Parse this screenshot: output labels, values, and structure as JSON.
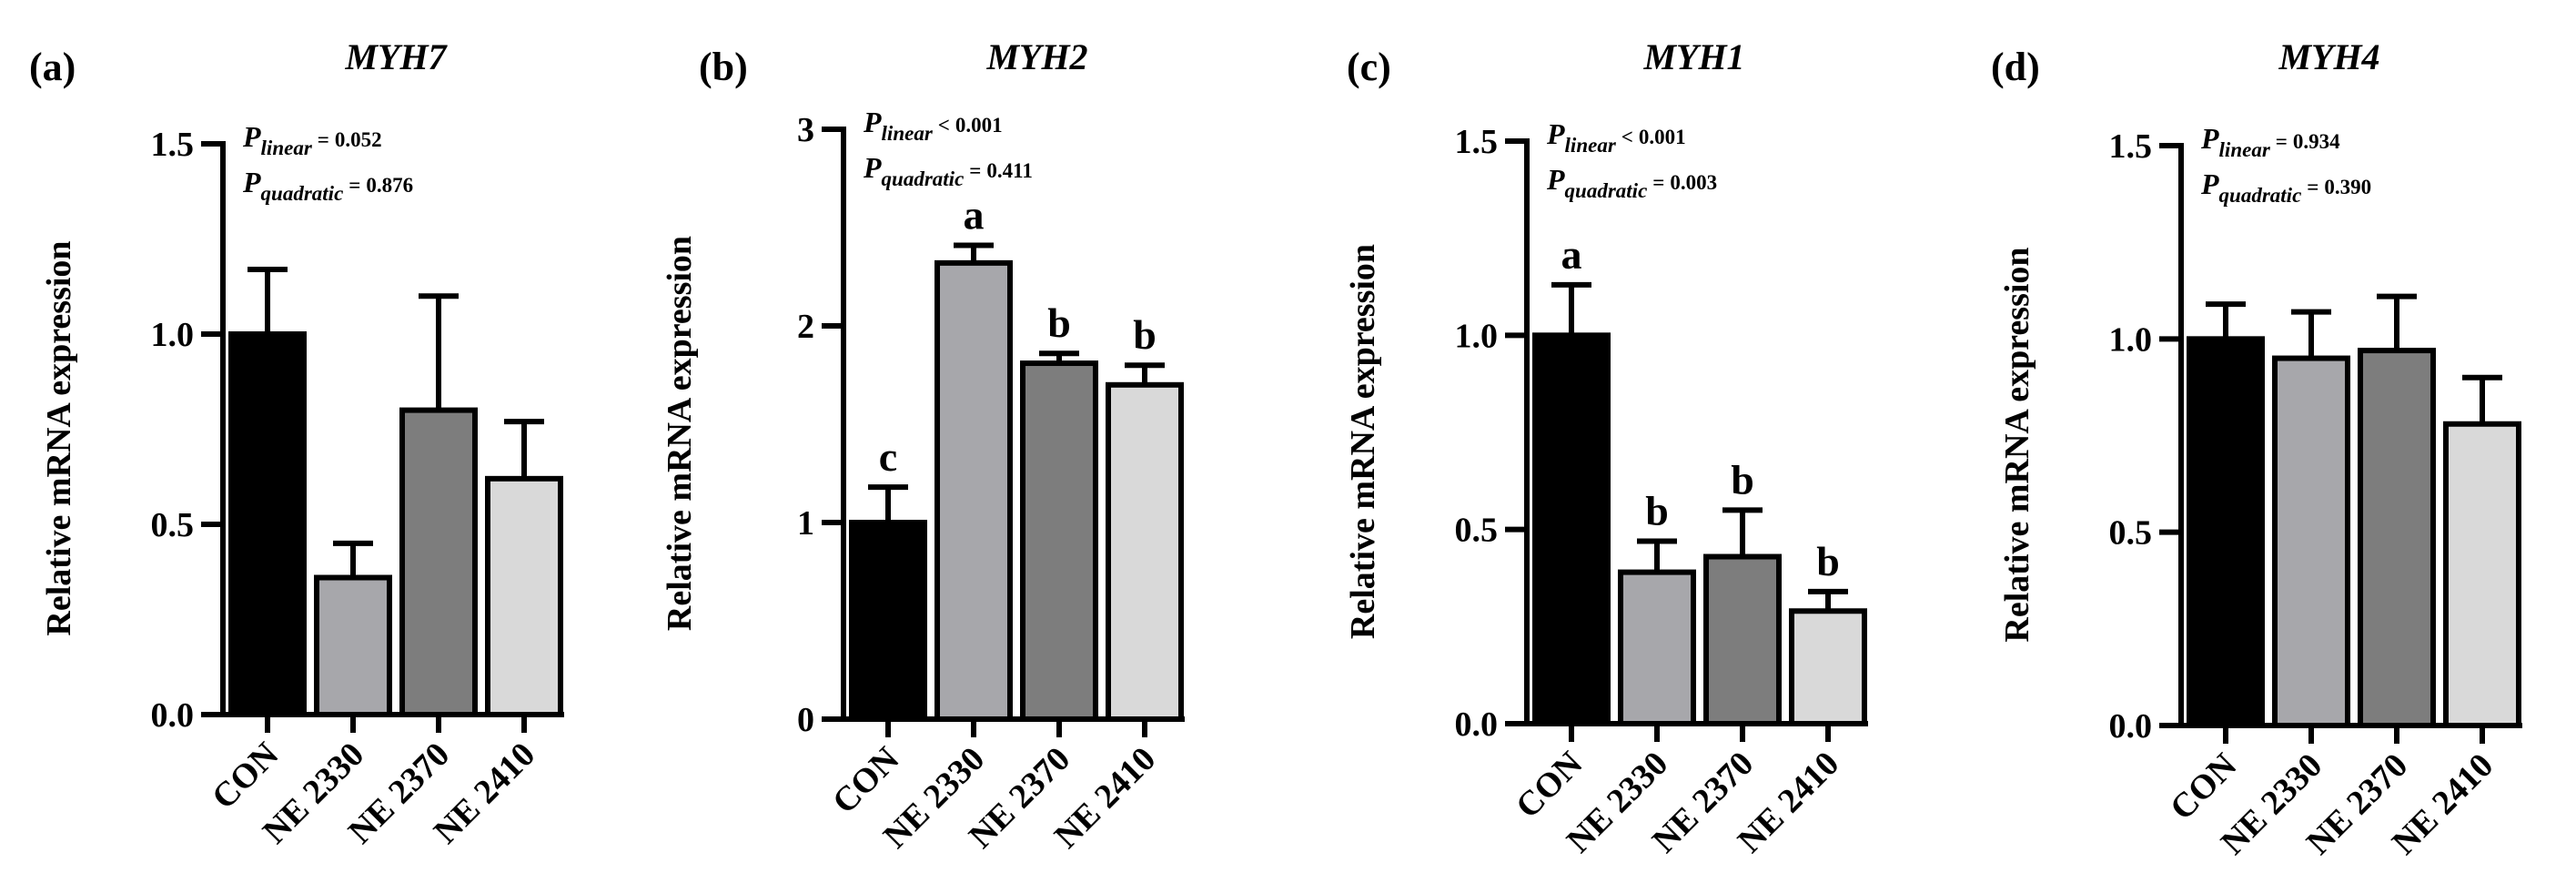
{
  "chart_data": [
    {
      "type": "bar",
      "panel": "(a)",
      "title": "MYH7",
      "ylabel": "Relative mRNA expression",
      "xlabel": "",
      "ylim": [
        0,
        1.5
      ],
      "yticks": [
        0.0,
        0.5,
        1.0,
        1.5
      ],
      "ytick_labels": [
        "0.0",
        "0.5",
        "1.0",
        "1.5"
      ],
      "categories": [
        "CON",
        "NE 2330",
        "NE 2370",
        "NE 2410"
      ],
      "values": [
        1.0,
        0.36,
        0.8,
        0.62
      ],
      "errors": [
        0.17,
        0.09,
        0.3,
        0.15
      ],
      "letters": [
        "",
        "",
        "",
        ""
      ],
      "stats": [
        {
          "sym": "P",
          "sub": "linear",
          "rel": "=",
          "val": "0.052"
        },
        {
          "sym": "P",
          "sub": "quadratic",
          "rel": "=",
          "val": "0.876"
        }
      ]
    },
    {
      "type": "bar",
      "panel": "(b)",
      "title": "MYH2",
      "ylabel": "Relative mRNA expression",
      "xlabel": "",
      "ylim": [
        0,
        3
      ],
      "yticks": [
        0,
        1,
        2,
        3
      ],
      "ytick_labels": [
        "0",
        "1",
        "2",
        "3"
      ],
      "categories": [
        "CON",
        "NE 2330",
        "NE 2370",
        "NE 2410"
      ],
      "values": [
        1.0,
        2.32,
        1.81,
        1.7
      ],
      "errors": [
        0.18,
        0.09,
        0.05,
        0.1
      ],
      "letters": [
        "c",
        "a",
        "b",
        "b"
      ],
      "stats": [
        {
          "sym": "P",
          "sub": "linear",
          "rel": "<",
          "val": "0.001"
        },
        {
          "sym": "P",
          "sub": "quadratic",
          "rel": "=",
          "val": "0.411"
        }
      ]
    },
    {
      "type": "bar",
      "panel": "(c)",
      "title": "MYH1",
      "ylabel": "Relative mRNA expression",
      "xlabel": "",
      "ylim": [
        0,
        1.5
      ],
      "yticks": [
        0.0,
        0.5,
        1.0,
        1.5
      ],
      "ytick_labels": [
        "0.0",
        "0.5",
        "1.0",
        "1.5"
      ],
      "categories": [
        "CON",
        "NE 2330",
        "NE 2370",
        "NE 2410"
      ],
      "values": [
        1.0,
        0.39,
        0.43,
        0.29
      ],
      "errors": [
        0.13,
        0.08,
        0.12,
        0.05
      ],
      "letters": [
        "a",
        "b",
        "b",
        "b"
      ],
      "stats": [
        {
          "sym": "P",
          "sub": "linear",
          "rel": "<",
          "val": "0.001"
        },
        {
          "sym": "P",
          "sub": "quadratic",
          "rel": "=",
          "val": "0.003"
        }
      ]
    },
    {
      "type": "bar",
      "panel": "(d)",
      "title": "MYH4",
      "ylabel": "Relative mRNA expression",
      "xlabel": "",
      "ylim": [
        0,
        1.5
      ],
      "yticks": [
        0.0,
        0.5,
        1.0,
        1.5
      ],
      "ytick_labels": [
        "0.0",
        "0.5",
        "1.0",
        "1.5"
      ],
      "categories": [
        "CON",
        "NE 2330",
        "NE 2370",
        "NE 2410"
      ],
      "values": [
        1.0,
        0.95,
        0.97,
        0.78
      ],
      "errors": [
        0.09,
        0.12,
        0.14,
        0.12
      ],
      "letters": [
        "",
        "",
        "",
        ""
      ],
      "stats": [
        {
          "sym": "P",
          "sub": "linear",
          "rel": "=",
          "val": "0.934"
        },
        {
          "sym": "P",
          "sub": "quadratic",
          "rel": "=",
          "val": "0.390"
        }
      ]
    }
  ],
  "colors": {
    "bars": [
      "#000000",
      "#a7a7ab",
      "#7d7d7d",
      "#d9d9d9"
    ],
    "axis": "#000000",
    "background": "#ffffff"
  }
}
